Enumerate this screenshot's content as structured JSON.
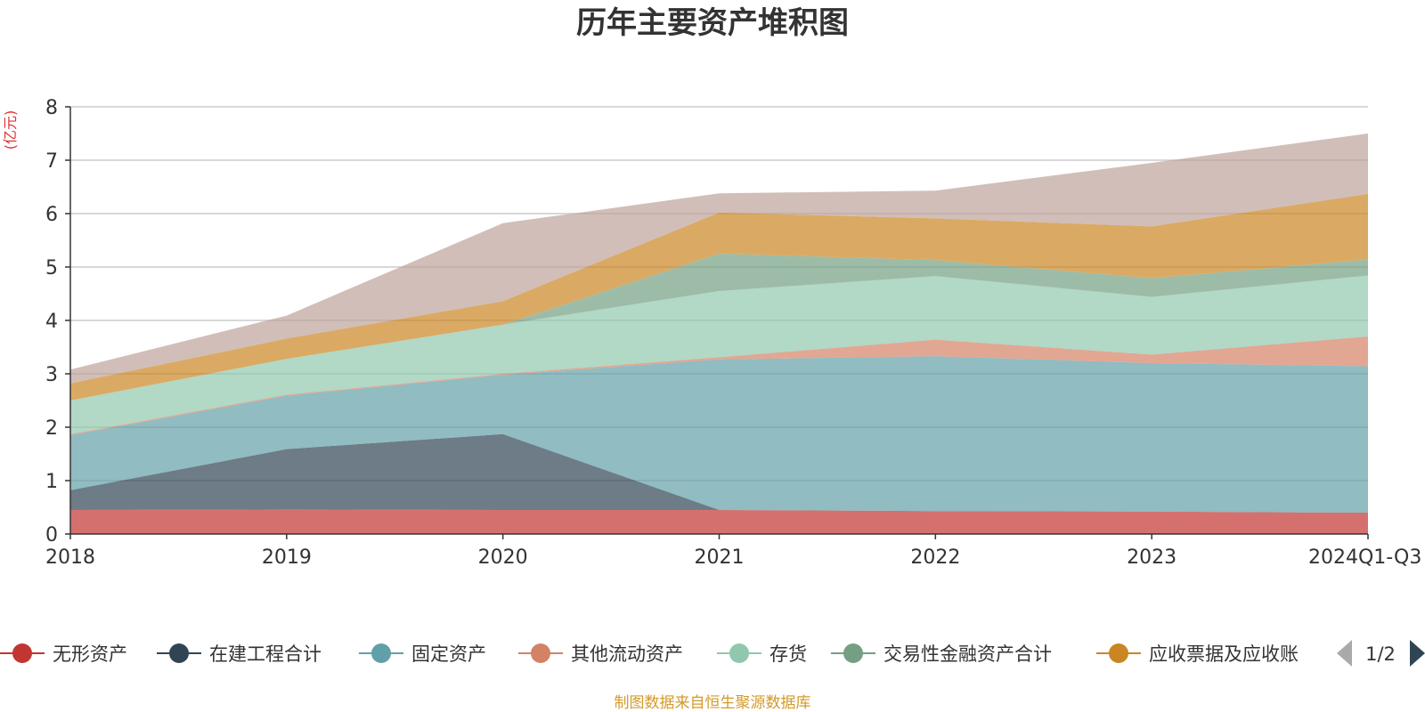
{
  "chart_data": {
    "type": "area",
    "stacked": true,
    "title": "历年主要资产堆积图",
    "unit": "(亿元)",
    "x": [
      "2018",
      "2019",
      "2020",
      "2021",
      "2022",
      "2023",
      "2024Q1-Q3"
    ],
    "ylim": [
      0,
      8
    ],
    "yticks": [
      0,
      1,
      2,
      3,
      4,
      5,
      6,
      7,
      8
    ],
    "grid": true,
    "legend_position": "bottom",
    "series": [
      {
        "name": "无形资产",
        "color": "#c23531",
        "values": [
          0.45,
          0.46,
          0.45,
          0.45,
          0.43,
          0.42,
          0.4
        ]
      },
      {
        "name": "在建工程合计",
        "color": "#2f4554",
        "values": [
          0.37,
          1.13,
          1.42,
          0.0,
          0.0,
          0.0,
          0.0
        ]
      },
      {
        "name": "固定资产",
        "color": "#61a0a8",
        "values": [
          1.03,
          1.0,
          1.11,
          2.82,
          2.9,
          2.78,
          2.74
        ]
      },
      {
        "name": "其他流动资产",
        "color": "#d48265",
        "values": [
          0.02,
          0.02,
          0.02,
          0.04,
          0.31,
          0.16,
          0.56
        ]
      },
      {
        "name": "存货",
        "color": "#91c7ae",
        "values": [
          0.63,
          0.67,
          0.92,
          1.24,
          1.19,
          1.08,
          1.14
        ]
      },
      {
        "name": "交易性金融资产合计",
        "color": "#749f83",
        "values": [
          0.0,
          0.0,
          0.0,
          0.7,
          0.3,
          0.35,
          0.3
        ]
      },
      {
        "name": "应收票据及应收账",
        "color": "#ca8622",
        "values": [
          0.32,
          0.38,
          0.44,
          0.77,
          0.78,
          0.97,
          1.23
        ]
      },
      {
        "name": "",
        "color": "#bda29a",
        "values": [
          0.26,
          0.43,
          1.46,
          0.36,
          0.52,
          1.19,
          1.13
        ]
      }
    ],
    "legend_page": "1/2",
    "source": "制图数据来自恒生聚源数据库"
  }
}
